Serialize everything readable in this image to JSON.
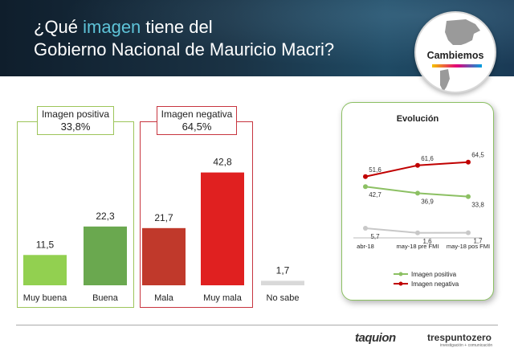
{
  "header": {
    "title_line1_a": "¿Qué ",
    "title_line1_hl": "imagen",
    "title_line1_b": " tiene del",
    "title_line2": "Gobierno Nacional de Mauricio Macri?",
    "logo_text": "Cambiemos"
  },
  "groups": {
    "positive": {
      "label": "Imagen positiva",
      "value": "33,8%"
    },
    "negative": {
      "label": "Imagen negativa",
      "value": "64,5%"
    }
  },
  "chart_data": [
    {
      "type": "bar",
      "categories": [
        "Muy buena",
        "Buena",
        "Mala",
        "Muy mala",
        "No sabe"
      ],
      "values": [
        11.5,
        22.3,
        21.7,
        42.8,
        1.7
      ],
      "value_labels": [
        "11,5",
        "22,3",
        "21,7",
        "42,8",
        "1,7"
      ],
      "colors": [
        "#92d050",
        "#6aa84f",
        "#c0392b",
        "#e02020",
        "#d9d9d9"
      ],
      "ylim": [
        0,
        50
      ]
    },
    {
      "type": "line",
      "title": "Evolución",
      "categories": [
        "abr-18",
        "may-18 pre FMI",
        "may-18 pos FMI"
      ],
      "series": [
        {
          "name": "Imagen positiva",
          "values": [
            42.7,
            36.9,
            33.8
          ],
          "labels": [
            "42,7",
            "36,9",
            "33,8"
          ],
          "color": "#8cc063"
        },
        {
          "name": "Imagen negativa",
          "values": [
            51.6,
            61.6,
            64.5
          ],
          "labels": [
            "51,6",
            "61,6",
            "64,5"
          ],
          "color": "#c00000"
        },
        {
          "values": [
            5.7,
            1.6,
            1.7
          ],
          "labels": [
            "5,7",
            "1,6",
            "1,7"
          ],
          "color": "#c8c8c8"
        }
      ],
      "ylim": [
        0,
        80
      ]
    }
  ],
  "footer": {
    "brand1": "taquion",
    "brand2": "trespuntozero",
    "brand2_sub": "investigación + comunicación"
  }
}
